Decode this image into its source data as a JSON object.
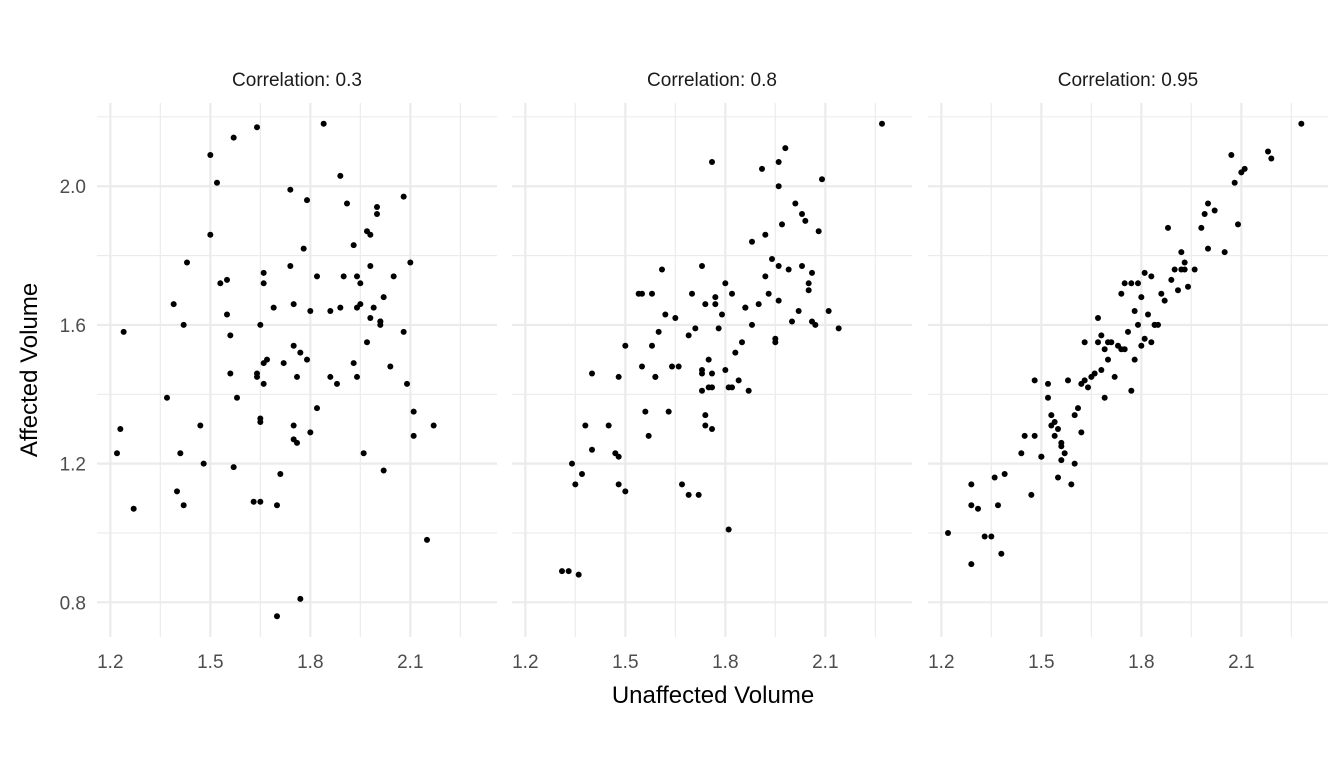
{
  "chart_data": {
    "type": "scatter",
    "xlabel": "Unaffected Volume",
    "ylabel": "Affected Volume",
    "xlim": [
      1.16,
      2.36
    ],
    "ylim": [
      0.7,
      2.24
    ],
    "x_ticks": [
      1.2,
      1.5,
      1.8,
      2.1
    ],
    "x_tick_labels": [
      "1.2",
      "1.5",
      "1.8",
      "2.1"
    ],
    "y_ticks": [
      0.8,
      1.2,
      1.6,
      2.0
    ],
    "y_tick_labels": [
      "0.8",
      "1.2",
      "1.6",
      "2.0"
    ],
    "grid": true,
    "panels": [
      {
        "title": "Correlation: 0.3",
        "points": [
          [
            1.22,
            1.23
          ],
          [
            1.23,
            1.3
          ],
          [
            1.24,
            1.58
          ],
          [
            1.27,
            1.07
          ],
          [
            1.37,
            1.39
          ],
          [
            1.39,
            1.66
          ],
          [
            1.4,
            1.12
          ],
          [
            1.41,
            1.23
          ],
          [
            1.42,
            1.6
          ],
          [
            1.42,
            1.08
          ],
          [
            1.43,
            1.78
          ],
          [
            1.47,
            1.31
          ],
          [
            1.48,
            1.2
          ],
          [
            1.5,
            1.86
          ],
          [
            1.5,
            2.09
          ],
          [
            1.52,
            2.01
          ],
          [
            1.53,
            1.72
          ],
          [
            1.55,
            1.73
          ],
          [
            1.55,
            1.63
          ],
          [
            1.56,
            1.46
          ],
          [
            1.56,
            1.57
          ],
          [
            1.57,
            2.14
          ],
          [
            1.57,
            1.19
          ],
          [
            1.58,
            1.39
          ],
          [
            1.63,
            1.09
          ],
          [
            1.64,
            2.17
          ],
          [
            1.64,
            1.46
          ],
          [
            1.64,
            1.45
          ],
          [
            1.65,
            1.33
          ],
          [
            1.65,
            1.32
          ],
          [
            1.65,
            1.6
          ],
          [
            1.65,
            1.09
          ],
          [
            1.66,
            1.72
          ],
          [
            1.66,
            1.75
          ],
          [
            1.66,
            1.49
          ],
          [
            1.66,
            1.43
          ],
          [
            1.67,
            1.5
          ],
          [
            1.69,
            1.65
          ],
          [
            1.7,
            0.76
          ],
          [
            1.7,
            1.08
          ],
          [
            1.71,
            1.17
          ],
          [
            1.72,
            1.49
          ],
          [
            1.74,
            1.99
          ],
          [
            1.74,
            1.77
          ],
          [
            1.75,
            1.54
          ],
          [
            1.75,
            1.31
          ],
          [
            1.75,
            1.27
          ],
          [
            1.75,
            1.66
          ],
          [
            1.76,
            1.26
          ],
          [
            1.76,
            1.45
          ],
          [
            1.77,
            0.81
          ],
          [
            1.77,
            1.52
          ],
          [
            1.78,
            1.82
          ],
          [
            1.79,
            1.96
          ],
          [
            1.79,
            1.5
          ],
          [
            1.8,
            1.29
          ],
          [
            1.8,
            1.64
          ],
          [
            1.82,
            1.36
          ],
          [
            1.82,
            1.74
          ],
          [
            1.84,
            2.18
          ],
          [
            1.86,
            1.45
          ],
          [
            1.86,
            1.64
          ],
          [
            1.88,
            1.43
          ],
          [
            1.89,
            2.03
          ],
          [
            1.89,
            1.65
          ],
          [
            1.9,
            1.74
          ],
          [
            1.91,
            1.95
          ],
          [
            1.93,
            1.83
          ],
          [
            1.93,
            1.49
          ],
          [
            1.94,
            1.74
          ],
          [
            1.94,
            1.45
          ],
          [
            1.94,
            1.65
          ],
          [
            1.95,
            1.66
          ],
          [
            1.95,
            1.72
          ],
          [
            1.96,
            1.23
          ],
          [
            1.97,
            1.87
          ],
          [
            1.97,
            1.55
          ],
          [
            1.98,
            1.77
          ],
          [
            1.98,
            1.86
          ],
          [
            1.98,
            1.62
          ],
          [
            1.99,
            1.65
          ],
          [
            2.0,
            1.94
          ],
          [
            2.0,
            1.92
          ],
          [
            2.01,
            1.61
          ],
          [
            2.01,
            1.6
          ],
          [
            2.01,
            1.61
          ],
          [
            2.02,
            1.68
          ],
          [
            2.02,
            1.18
          ],
          [
            2.04,
            1.48
          ],
          [
            2.05,
            1.74
          ],
          [
            2.08,
            1.58
          ],
          [
            2.08,
            1.97
          ],
          [
            2.09,
            1.43
          ],
          [
            2.1,
            1.78
          ],
          [
            2.11,
            1.35
          ],
          [
            2.11,
            1.28
          ],
          [
            2.15,
            0.98
          ],
          [
            2.17,
            1.31
          ]
        ]
      },
      {
        "title": "Correlation: 0.8",
        "points": [
          [
            1.31,
            0.89
          ],
          [
            1.33,
            0.89
          ],
          [
            1.34,
            1.2
          ],
          [
            1.35,
            1.14
          ],
          [
            1.36,
            0.88
          ],
          [
            1.37,
            1.17
          ],
          [
            1.38,
            1.31
          ],
          [
            1.4,
            1.24
          ],
          [
            1.4,
            1.46
          ],
          [
            1.45,
            1.31
          ],
          [
            1.47,
            1.23
          ],
          [
            1.48,
            1.22
          ],
          [
            1.48,
            1.14
          ],
          [
            1.48,
            1.45
          ],
          [
            1.5,
            1.12
          ],
          [
            1.5,
            1.54
          ],
          [
            1.54,
            1.69
          ],
          [
            1.55,
            1.48
          ],
          [
            1.56,
            1.35
          ],
          [
            1.57,
            1.28
          ],
          [
            1.58,
            1.69
          ],
          [
            1.58,
            1.54
          ],
          [
            1.59,
            1.45
          ],
          [
            1.6,
            1.58
          ],
          [
            1.61,
            1.76
          ],
          [
            1.62,
            1.63
          ],
          [
            1.63,
            1.35
          ],
          [
            1.64,
            1.48
          ],
          [
            1.65,
            1.62
          ],
          [
            1.66,
            1.48
          ],
          [
            1.67,
            1.14
          ],
          [
            1.69,
            1.57
          ],
          [
            1.7,
            1.69
          ],
          [
            1.71,
            1.59
          ],
          [
            1.72,
            1.11
          ],
          [
            1.73,
            1.46
          ],
          [
            1.73,
            1.41
          ],
          [
            1.73,
            1.47
          ],
          [
            1.74,
            1.34
          ],
          [
            1.74,
            1.31
          ],
          [
            1.74,
            1.66
          ],
          [
            1.75,
            1.5
          ],
          [
            1.75,
            1.42
          ],
          [
            1.76,
            1.46
          ],
          [
            1.76,
            1.3
          ],
          [
            1.76,
            1.42
          ],
          [
            1.77,
            1.66
          ],
          [
            1.77,
            1.68
          ],
          [
            1.78,
            1.59
          ],
          [
            1.79,
            1.63
          ],
          [
            1.8,
            1.72
          ],
          [
            1.8,
            1.47
          ],
          [
            1.81,
            1.42
          ],
          [
            1.82,
            1.69
          ],
          [
            1.82,
            1.42
          ],
          [
            1.83,
            1.52
          ],
          [
            1.84,
            1.44
          ],
          [
            1.85,
            1.55
          ],
          [
            1.86,
            1.65
          ],
          [
            1.86,
            1.65
          ],
          [
            1.87,
            1.41
          ],
          [
            1.88,
            1.84
          ],
          [
            1.88,
            1.6
          ],
          [
            1.9,
            1.66
          ],
          [
            1.91,
            2.05
          ],
          [
            1.92,
            1.86
          ],
          [
            1.92,
            1.74
          ],
          [
            1.93,
            1.69
          ],
          [
            1.94,
            1.79
          ],
          [
            1.95,
            1.56
          ],
          [
            1.95,
            1.55
          ],
          [
            1.96,
            2.0
          ],
          [
            1.96,
            2.07
          ],
          [
            1.96,
            1.77
          ],
          [
            1.96,
            1.67
          ],
          [
            1.97,
            1.89
          ],
          [
            1.98,
            2.11
          ],
          [
            1.99,
            1.76
          ],
          [
            2.0,
            1.61
          ],
          [
            2.01,
            1.95
          ],
          [
            2.02,
            1.64
          ],
          [
            2.03,
            1.92
          ],
          [
            2.03,
            1.77
          ],
          [
            2.04,
            1.9
          ],
          [
            2.05,
            1.7
          ],
          [
            2.05,
            1.72
          ],
          [
            2.06,
            1.61
          ],
          [
            2.06,
            1.75
          ],
          [
            2.07,
            1.6
          ],
          [
            2.08,
            1.87
          ],
          [
            2.09,
            2.02
          ],
          [
            2.11,
            1.64
          ],
          [
            2.14,
            1.59
          ],
          [
            2.27,
            2.18
          ],
          [
            1.76,
            2.07
          ],
          [
            1.81,
            1.01
          ],
          [
            1.73,
            1.77
          ],
          [
            1.69,
            1.11
          ],
          [
            1.55,
            1.69
          ],
          [
            1.59,
            1.45
          ]
        ]
      },
      {
        "title": "Correlation: 0.95",
        "points": [
          [
            1.22,
            1.0
          ],
          [
            1.29,
            1.08
          ],
          [
            1.29,
            0.91
          ],
          [
            1.29,
            1.14
          ],
          [
            1.31,
            1.07
          ],
          [
            1.33,
            0.99
          ],
          [
            1.35,
            0.99
          ],
          [
            1.36,
            1.16
          ],
          [
            1.37,
            1.08
          ],
          [
            1.38,
            0.94
          ],
          [
            1.39,
            1.17
          ],
          [
            1.44,
            1.23
          ],
          [
            1.45,
            1.28
          ],
          [
            1.47,
            1.11
          ],
          [
            1.48,
            1.28
          ],
          [
            1.48,
            1.44
          ],
          [
            1.5,
            1.22
          ],
          [
            1.52,
            1.39
          ],
          [
            1.52,
            1.43
          ],
          [
            1.53,
            1.34
          ],
          [
            1.53,
            1.31
          ],
          [
            1.54,
            1.32
          ],
          [
            1.54,
            1.28
          ],
          [
            1.55,
            1.3
          ],
          [
            1.55,
            1.16
          ],
          [
            1.56,
            1.26
          ],
          [
            1.56,
            1.25
          ],
          [
            1.57,
            1.23
          ],
          [
            1.58,
            1.44
          ],
          [
            1.59,
            1.14
          ],
          [
            1.6,
            1.2
          ],
          [
            1.6,
            1.34
          ],
          [
            1.61,
            1.36
          ],
          [
            1.62,
            1.43
          ],
          [
            1.62,
            1.29
          ],
          [
            1.63,
            1.44
          ],
          [
            1.63,
            1.55
          ],
          [
            1.64,
            1.42
          ],
          [
            1.65,
            1.45
          ],
          [
            1.66,
            1.46
          ],
          [
            1.67,
            1.62
          ],
          [
            1.67,
            1.55
          ],
          [
            1.68,
            1.47
          ],
          [
            1.68,
            1.57
          ],
          [
            1.69,
            1.39
          ],
          [
            1.69,
            1.53
          ],
          [
            1.7,
            1.5
          ],
          [
            1.71,
            1.55
          ],
          [
            1.72,
            1.45
          ],
          [
            1.73,
            1.54
          ],
          [
            1.74,
            1.69
          ],
          [
            1.75,
            1.72
          ],
          [
            1.75,
            1.53
          ],
          [
            1.76,
            1.58
          ],
          [
            1.77,
            1.72
          ],
          [
            1.77,
            1.41
          ],
          [
            1.78,
            1.5
          ],
          [
            1.78,
            1.64
          ],
          [
            1.79,
            1.6
          ],
          [
            1.8,
            1.54
          ],
          [
            1.8,
            1.68
          ],
          [
            1.81,
            1.56
          ],
          [
            1.81,
            1.75
          ],
          [
            1.82,
            1.63
          ],
          [
            1.83,
            1.74
          ],
          [
            1.83,
            1.55
          ],
          [
            1.84,
            1.6
          ],
          [
            1.85,
            1.6
          ],
          [
            1.86,
            1.69
          ],
          [
            1.87,
            1.67
          ],
          [
            1.88,
            1.88
          ],
          [
            1.89,
            1.73
          ],
          [
            1.9,
            1.76
          ],
          [
            1.91,
            1.7
          ],
          [
            1.92,
            1.81
          ],
          [
            1.93,
            1.78
          ],
          [
            1.93,
            1.76
          ],
          [
            1.94,
            1.71
          ],
          [
            1.96,
            1.76
          ],
          [
            1.98,
            1.88
          ],
          [
            1.99,
            1.92
          ],
          [
            2.0,
            1.82
          ],
          [
            2.0,
            1.95
          ],
          [
            2.02,
            1.93
          ],
          [
            2.05,
            1.81
          ],
          [
            2.07,
            2.09
          ],
          [
            2.08,
            2.01
          ],
          [
            2.09,
            1.89
          ],
          [
            2.1,
            2.04
          ],
          [
            2.11,
            2.05
          ],
          [
            2.18,
            2.1
          ],
          [
            2.19,
            2.08
          ],
          [
            2.28,
            2.18
          ],
          [
            1.79,
            1.72
          ],
          [
            1.7,
            1.55
          ],
          [
            1.84,
            1.6
          ],
          [
            1.56,
            1.21
          ],
          [
            1.5,
            1.22
          ],
          [
            1.92,
            1.76
          ],
          [
            1.74,
            1.53
          ]
        ]
      }
    ]
  }
}
